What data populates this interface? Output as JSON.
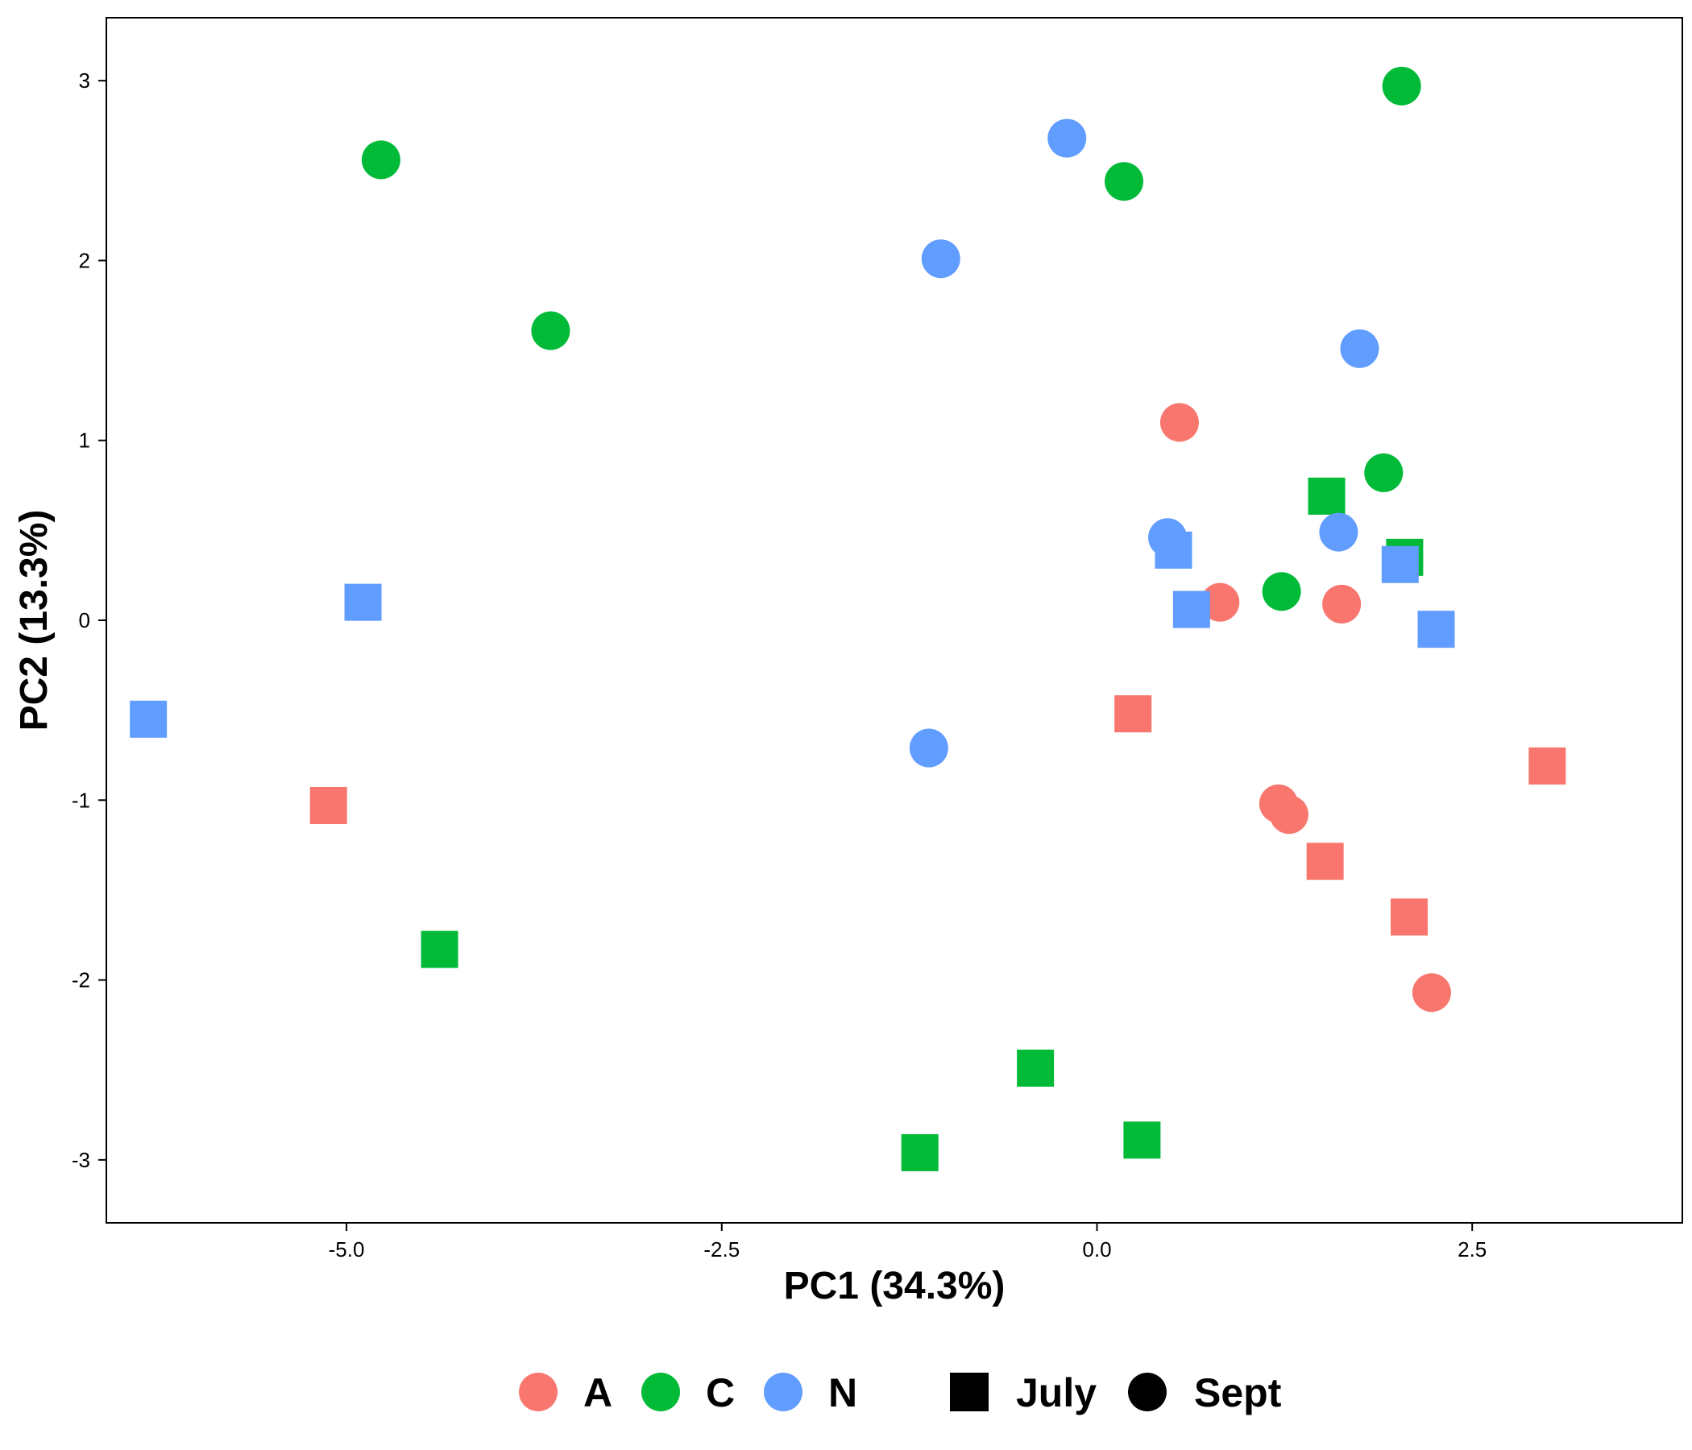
{
  "chart_data": {
    "type": "scatter",
    "title": "",
    "xlabel": "PC1 (34.3%)",
    "ylabel": "PC2 (13.3%)",
    "xlim": [
      -6.6,
      3.9
    ],
    "ylim": [
      -3.35,
      3.35
    ],
    "x_ticks": [
      -5.0,
      -2.5,
      0.0,
      2.5
    ],
    "x_tick_labels": [
      "-5.0",
      "-2.5",
      "0.0",
      "2.5"
    ],
    "y_ticks": [
      -3,
      -2,
      -1,
      0,
      1,
      2,
      3
    ],
    "y_tick_labels": [
      "-3",
      "-2",
      "-1",
      "0",
      "1",
      "2",
      "3"
    ],
    "grid": false,
    "legend_position": "bottom",
    "color_legend": [
      {
        "label": "A",
        "color": "#F8766D"
      },
      {
        "label": "C",
        "color": "#00BA38"
      },
      {
        "label": "N",
        "color": "#619CFF"
      }
    ],
    "shape_legend": [
      {
        "label": "July",
        "shape": "square"
      },
      {
        "label": "Sept",
        "shape": "circle"
      }
    ],
    "points": [
      {
        "x": 0.55,
        "y": 1.1,
        "group": "A",
        "shape": "circle"
      },
      {
        "x": 0.82,
        "y": 0.1,
        "group": "A",
        "shape": "circle"
      },
      {
        "x": 1.63,
        "y": 0.09,
        "group": "A",
        "shape": "circle"
      },
      {
        "x": 1.21,
        "y": -1.02,
        "group": "A",
        "shape": "circle"
      },
      {
        "x": 1.28,
        "y": -1.08,
        "group": "A",
        "shape": "circle"
      },
      {
        "x": 2.23,
        "y": -2.07,
        "group": "A",
        "shape": "circle"
      },
      {
        "x": 0.24,
        "y": -0.52,
        "group": "A",
        "shape": "square"
      },
      {
        "x": -5.12,
        "y": -1.03,
        "group": "A",
        "shape": "square"
      },
      {
        "x": 1.52,
        "y": -1.34,
        "group": "A",
        "shape": "square"
      },
      {
        "x": 2.08,
        "y": -1.65,
        "group": "A",
        "shape": "square"
      },
      {
        "x": 3.0,
        "y": -0.81,
        "group": "A",
        "shape": "square"
      },
      {
        "x": -4.77,
        "y": 2.56,
        "group": "C",
        "shape": "circle"
      },
      {
        "x": -3.64,
        "y": 1.61,
        "group": "C",
        "shape": "circle"
      },
      {
        "x": 0.18,
        "y": 2.44,
        "group": "C",
        "shape": "circle"
      },
      {
        "x": 2.03,
        "y": 2.97,
        "group": "C",
        "shape": "circle"
      },
      {
        "x": 1.91,
        "y": 0.82,
        "group": "C",
        "shape": "circle"
      },
      {
        "x": 1.23,
        "y": 0.16,
        "group": "C",
        "shape": "circle"
      },
      {
        "x": -4.38,
        "y": -1.83,
        "group": "C",
        "shape": "square"
      },
      {
        "x": -0.41,
        "y": -2.49,
        "group": "C",
        "shape": "square"
      },
      {
        "x": -1.18,
        "y": -2.96,
        "group": "C",
        "shape": "square"
      },
      {
        "x": 0.3,
        "y": -2.89,
        "group": "C",
        "shape": "square"
      },
      {
        "x": 1.53,
        "y": 0.69,
        "group": "C",
        "shape": "square"
      },
      {
        "x": 2.05,
        "y": 0.35,
        "group": "C",
        "shape": "square"
      },
      {
        "x": -0.2,
        "y": 2.68,
        "group": "N",
        "shape": "circle"
      },
      {
        "x": -1.04,
        "y": 2.01,
        "group": "N",
        "shape": "circle"
      },
      {
        "x": 1.75,
        "y": 1.51,
        "group": "N",
        "shape": "circle"
      },
      {
        "x": 0.47,
        "y": 0.46,
        "group": "N",
        "shape": "circle"
      },
      {
        "x": 1.61,
        "y": 0.49,
        "group": "N",
        "shape": "circle"
      },
      {
        "x": -1.12,
        "y": -0.71,
        "group": "N",
        "shape": "circle"
      },
      {
        "x": 0.51,
        "y": 0.39,
        "group": "N",
        "shape": "square"
      },
      {
        "x": 0.63,
        "y": 0.06,
        "group": "N",
        "shape": "square"
      },
      {
        "x": 2.02,
        "y": 0.31,
        "group": "N",
        "shape": "square"
      },
      {
        "x": 2.26,
        "y": -0.05,
        "group": "N",
        "shape": "square"
      },
      {
        "x": -4.89,
        "y": 0.1,
        "group": "N",
        "shape": "square"
      },
      {
        "x": -6.32,
        "y": -0.55,
        "group": "N",
        "shape": "square"
      }
    ]
  }
}
